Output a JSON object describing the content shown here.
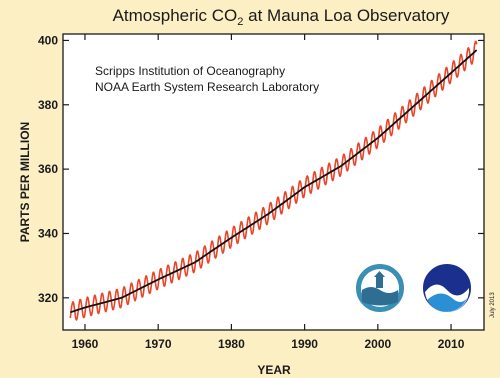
{
  "title": {
    "main": "Atmospheric CO",
    "subscript": "2",
    "rest": " at Mauna Loa Observatory"
  },
  "source": {
    "line1": "Scripps Institution of Oceanography",
    "line2": "NOAA Earth System Research Laboratory"
  },
  "date_stamp": "July 2013",
  "colors": {
    "background": "#fcefc4",
    "plot_background": "#ffffff",
    "monthly_series": "#e8452a",
    "trend_series": "#111111"
  },
  "logos": [
    "scripps-logo",
    "noaa-logo"
  ],
  "chart_data": {
    "type": "line",
    "xlabel": "YEAR",
    "ylabel": "PARTS PER MILLION",
    "xlim": [
      1957,
      2014.5
    ],
    "ylim": [
      310,
      402
    ],
    "x_ticks": [
      1960,
      1970,
      1980,
      1990,
      2000,
      2010
    ],
    "y_ticks": [
      320,
      340,
      360,
      380,
      400
    ],
    "grid": false,
    "series": [
      {
        "style": "seasonal monthly values",
        "x": [
          1958,
          1960,
          1965,
          1970,
          1975,
          1980,
          1985,
          1990,
          1995,
          2000,
          2005,
          2010,
          2013.5
        ],
        "values": [
          315.5,
          317,
          320,
          325.7,
          331,
          338.7,
          346,
          354.4,
          361,
          369.7,
          379.8,
          389.9,
          397
        ]
      },
      {
        "style": "trend line",
        "x": [
          1958,
          1960,
          1965,
          1970,
          1975,
          1980,
          1985,
          1990,
          1995,
          2000,
          2005,
          2010,
          2013.5
        ],
        "values": [
          315.5,
          317,
          320,
          325.7,
          331,
          338.7,
          346,
          354.4,
          361,
          369.7,
          379.8,
          389.9,
          397
        ]
      }
    ],
    "seasonal_amplitude_ppm": 3
  }
}
